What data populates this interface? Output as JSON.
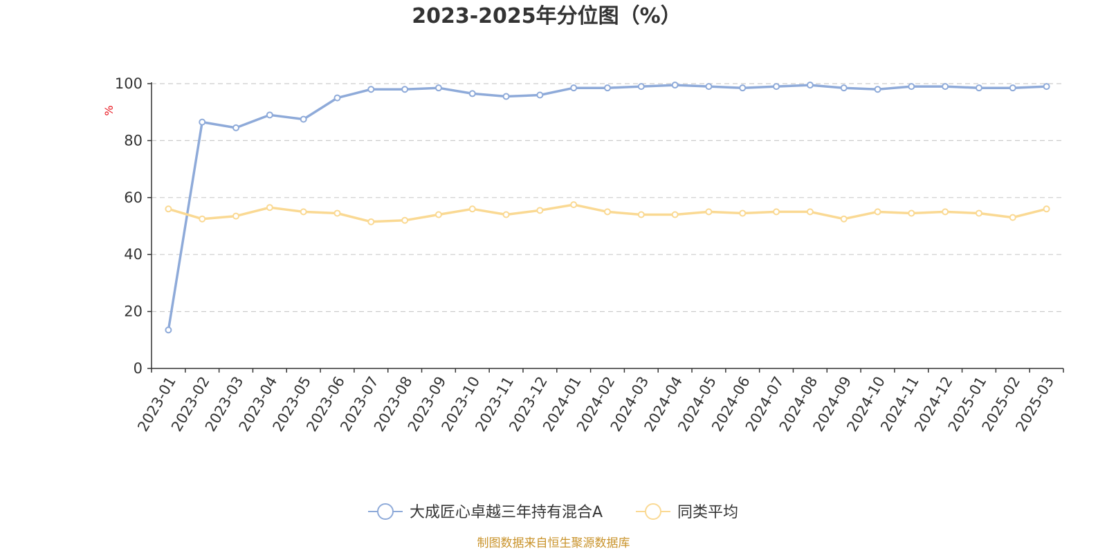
{
  "chart_data": {
    "type": "line",
    "title": "2023-2025年分位图（%）",
    "ylabel": "%",
    "xlabel": "",
    "ylim": [
      0,
      100
    ],
    "yticks": [
      0,
      20,
      40,
      60,
      80,
      100
    ],
    "grid": true,
    "legend_position": "bottom",
    "categories": [
      "2023-01",
      "2023-02",
      "2023-03",
      "2023-04",
      "2023-05",
      "2023-06",
      "2023-07",
      "2023-08",
      "2023-09",
      "2023-10",
      "2023-11",
      "2023-12",
      "2024-01",
      "2024-02",
      "2024-03",
      "2024-04",
      "2024-05",
      "2024-06",
      "2024-07",
      "2024-08",
      "2024-09",
      "2024-10",
      "2024-11",
      "2024-12",
      "2025-01",
      "2025-02",
      "2025-03"
    ],
    "series": [
      {
        "name": "大成匠心卓越三年持有混合A",
        "color": "#8eaad9",
        "values": [
          13.5,
          86.5,
          84.5,
          89,
          87.5,
          95,
          98,
          98,
          98.5,
          96.5,
          95.5,
          96,
          98.5,
          98.5,
          99,
          99.5,
          99,
          98.5,
          99,
          99.5,
          98.5,
          98,
          99,
          99,
          98.5,
          98.5,
          99
        ]
      },
      {
        "name": "同类平均",
        "color": "#fad993",
        "values": [
          56,
          52.5,
          53.5,
          56.5,
          55,
          54.5,
          51.5,
          52,
          54,
          56,
          54,
          55.5,
          57.5,
          55,
          54,
          54,
          55,
          54.5,
          55,
          55,
          52.5,
          55,
          54.5,
          55,
          54.5,
          53,
          56
        ]
      }
    ]
  },
  "colors": {
    "axis": "#333333",
    "grid": "#cccccc",
    "unit": "#e8141d",
    "source": "#c9932b"
  },
  "footer": {
    "source": "制图数据来自恒生聚源数据库"
  }
}
